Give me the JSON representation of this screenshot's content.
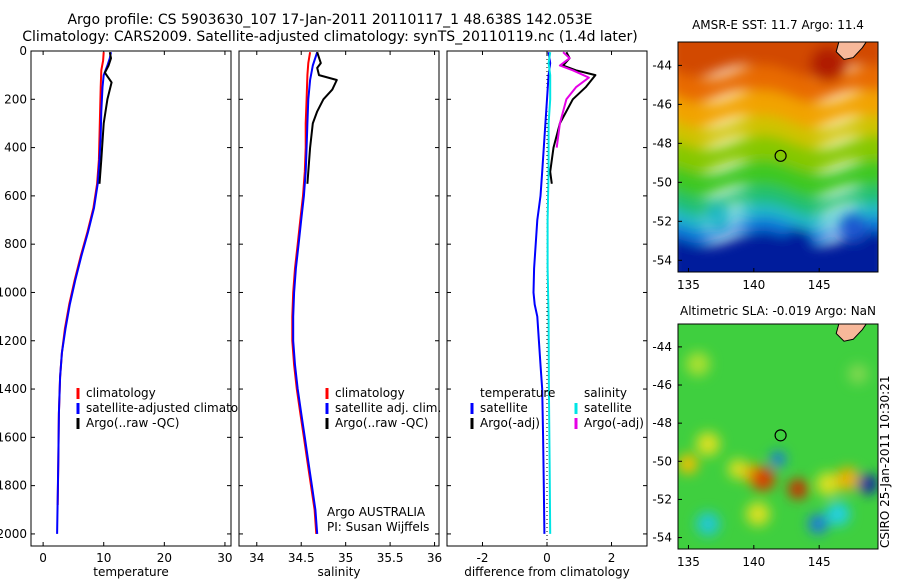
{
  "header": {
    "line1": "Argo profile: CS 5903630_107 17-Jan-2011 20110117_1 48.638S 142.053E",
    "line2": "Climatology: CARS2009. Satellite-adjusted climatology: synTS_20110119.nc (1.4d later)"
  },
  "colors": {
    "climatology": "#ff0000",
    "satellite": "#0000ff",
    "argo": "#000000",
    "satellite_diff": "#00e5e5",
    "argo_adj_diff": "#e600e6",
    "coast_land": "#f7b89a"
  },
  "chart_data": [
    {
      "type": "line",
      "name": "temperature-profile",
      "xlabel": "temperature",
      "ylabel": "",
      "xlim": [
        -2,
        31
      ],
      "ylim": [
        2050,
        0
      ],
      "xticks": [
        0,
        10,
        20,
        30
      ],
      "yticks": [
        0,
        200,
        400,
        600,
        800,
        1000,
        1200,
        1400,
        1600,
        1800,
        2000
      ],
      "legend": [
        "climatology",
        "satellite-adjusted climatolog",
        "Argo(..raw -QC)"
      ],
      "series": [
        {
          "name": "climatology",
          "color": "#ff0000",
          "points": [
            [
              10.0,
              5
            ],
            [
              9.9,
              40
            ],
            [
              9.6,
              80
            ],
            [
              9.5,
              150
            ],
            [
              9.4,
              250
            ],
            [
              9.3,
              350
            ],
            [
              9.2,
              450
            ],
            [
              8.9,
              550
            ],
            [
              8.3,
              650
            ],
            [
              7.3,
              750
            ],
            [
              6.2,
              850
            ],
            [
              5.2,
              950
            ],
            [
              4.3,
              1050
            ],
            [
              3.6,
              1150
            ],
            [
              3.1,
              1250
            ],
            [
              2.8,
              1350
            ],
            [
              2.6,
              1500
            ],
            [
              2.5,
              1700
            ],
            [
              2.4,
              1880
            ]
          ]
        },
        {
          "name": "satellite-adjusted climatology",
          "color": "#0000ff",
          "points": [
            [
              11.2,
              5
            ],
            [
              11.0,
              30
            ],
            [
              10.6,
              60
            ],
            [
              10.0,
              100
            ],
            [
              9.8,
              150
            ],
            [
              9.6,
              250
            ],
            [
              9.5,
              350
            ],
            [
              9.3,
              450
            ],
            [
              9.0,
              550
            ],
            [
              8.4,
              650
            ],
            [
              7.4,
              750
            ],
            [
              6.3,
              850
            ],
            [
              5.3,
              950
            ],
            [
              4.4,
              1050
            ],
            [
              3.7,
              1150
            ],
            [
              3.1,
              1250
            ],
            [
              2.8,
              1350
            ],
            [
              2.6,
              1500
            ],
            [
              2.5,
              1700
            ],
            [
              2.4,
              1850
            ],
            [
              2.3,
              2000
            ]
          ]
        },
        {
          "name": "Argo(..raw -QC)",
          "color": "#000000",
          "points": [
            [
              11.0,
              5
            ],
            [
              11.2,
              30
            ],
            [
              10.8,
              60
            ],
            [
              10.2,
              90
            ],
            [
              11.3,
              130
            ],
            [
              10.6,
              200
            ],
            [
              10.0,
              300
            ],
            [
              9.6,
              450
            ],
            [
              9.3,
              550
            ]
          ]
        }
      ]
    },
    {
      "type": "line",
      "name": "salinity-profile",
      "xlabel": "salinity",
      "ylabel": "",
      "xlim": [
        33.8,
        36.05
      ],
      "ylim": [
        2050,
        0
      ],
      "xticks": [
        34,
        34.5,
        35,
        35.5,
        36
      ],
      "legend": [
        "climatology",
        "satellite adj. clim.",
        "Argo(..raw -QC)"
      ],
      "annotation": [
        "Argo AUSTRALIA",
        "PI: Susan Wijffels"
      ],
      "series": [
        {
          "name": "climatology",
          "color": "#ff0000",
          "points": [
            [
              34.6,
              5
            ],
            [
              34.58,
              50
            ],
            [
              34.57,
              100
            ],
            [
              34.56,
              200
            ],
            [
              34.55,
              300
            ],
            [
              34.55,
              400
            ],
            [
              34.54,
              500
            ],
            [
              34.52,
              600
            ],
            [
              34.49,
              700
            ],
            [
              34.46,
              800
            ],
            [
              34.43,
              900
            ],
            [
              34.41,
              1000
            ],
            [
              34.4,
              1100
            ],
            [
              34.4,
              1200
            ],
            [
              34.42,
              1300
            ],
            [
              34.45,
              1400
            ],
            [
              34.49,
              1500
            ],
            [
              34.53,
              1600
            ],
            [
              34.57,
              1700
            ],
            [
              34.61,
              1800
            ],
            [
              34.65,
              1900
            ],
            [
              34.67,
              2000
            ]
          ]
        },
        {
          "name": "satellite adj. clim.",
          "color": "#0000ff",
          "points": [
            [
              34.68,
              5
            ],
            [
              34.63,
              60
            ],
            [
              34.6,
              120
            ],
            [
              34.58,
              200
            ],
            [
              34.57,
              300
            ],
            [
              34.56,
              400
            ],
            [
              34.55,
              500
            ],
            [
              34.53,
              600
            ],
            [
              34.5,
              700
            ],
            [
              34.47,
              800
            ],
            [
              34.44,
              900
            ],
            [
              34.42,
              1000
            ],
            [
              34.41,
              1100
            ],
            [
              34.41,
              1200
            ],
            [
              34.43,
              1300
            ],
            [
              34.46,
              1400
            ],
            [
              34.5,
              1500
            ],
            [
              34.54,
              1600
            ],
            [
              34.58,
              1700
            ],
            [
              34.62,
              1800
            ],
            [
              34.66,
              1900
            ],
            [
              34.68,
              2000
            ]
          ]
        },
        {
          "name": "Argo(..raw -QC)",
          "color": "#000000",
          "points": [
            [
              34.68,
              5
            ],
            [
              34.72,
              50
            ],
            [
              34.68,
              70
            ],
            [
              34.7,
              100
            ],
            [
              34.9,
              120
            ],
            [
              34.85,
              160
            ],
            [
              34.75,
              200
            ],
            [
              34.68,
              250
            ],
            [
              34.63,
              300
            ],
            [
              34.6,
              400
            ],
            [
              34.58,
              500
            ],
            [
              34.57,
              550
            ]
          ]
        }
      ]
    },
    {
      "type": "line",
      "name": "difference-profile",
      "xlabel": "difference from climatology",
      "ylabel": "",
      "xlim": [
        -3.1,
        3.1
      ],
      "ylim": [
        2050,
        0
      ],
      "xticks": [
        -2,
        0,
        2
      ],
      "legend": [
        "temperature",
        "satellite",
        "Argo(-adj)",
        "salinity",
        "satellite",
        "Argo(-adj)"
      ],
      "series": [
        {
          "name": "temperature satellite",
          "color": "#0000ff",
          "points": [
            [
              0.05,
              5
            ],
            [
              0.1,
              50
            ],
            [
              0.05,
              100
            ],
            [
              0.0,
              200
            ],
            [
              -0.05,
              300
            ],
            [
              -0.1,
              400
            ],
            [
              -0.15,
              500
            ],
            [
              -0.2,
              600
            ],
            [
              -0.25,
              650
            ],
            [
              -0.3,
              700
            ],
            [
              -0.35,
              800
            ],
            [
              -0.4,
              900
            ],
            [
              -0.42,
              1000
            ],
            [
              -0.38,
              1050
            ],
            [
              -0.3,
              1100
            ],
            [
              -0.25,
              1200
            ],
            [
              -0.2,
              1300
            ],
            [
              -0.15,
              1400
            ],
            [
              -0.12,
              1600
            ],
            [
              -0.1,
              1800
            ],
            [
              -0.08,
              2000
            ]
          ]
        },
        {
          "name": "temperature Argo(-adj)",
          "color": "#000000",
          "points": [
            [
              0.6,
              5
            ],
            [
              0.7,
              30
            ],
            [
              0.5,
              60
            ],
            [
              0.9,
              80
            ],
            [
              1.5,
              100
            ],
            [
              1.2,
              150
            ],
            [
              0.8,
              200
            ],
            [
              0.4,
              300
            ],
            [
              0.2,
              400
            ],
            [
              0.1,
              500
            ],
            [
              0.15,
              550
            ]
          ]
        },
        {
          "name": "salinity satellite",
          "color": "#00e5e5",
          "points": [
            [
              0.1,
              5
            ],
            [
              0.05,
              50
            ],
            [
              0.1,
              100
            ],
            [
              0.1,
              200
            ],
            [
              0.05,
              300
            ],
            [
              0.05,
              500
            ],
            [
              0.02,
              700
            ],
            [
              0.02,
              900
            ],
            [
              0.05,
              1100
            ],
            [
              0.06,
              1400
            ],
            [
              0.08,
              1700
            ],
            [
              0.1,
              2000
            ]
          ]
        },
        {
          "name": "salinity Argo(-adj)",
          "color": "#e600e6",
          "points": [
            [
              0.5,
              5
            ],
            [
              0.7,
              30
            ],
            [
              0.4,
              60
            ],
            [
              0.8,
              80
            ],
            [
              1.3,
              110
            ],
            [
              0.9,
              150
            ],
            [
              0.6,
              200
            ],
            [
              0.4,
              300
            ],
            [
              0.3,
              400
            ]
          ]
        }
      ]
    },
    {
      "type": "heatmap",
      "name": "sst-map",
      "title": "AMSR-E SST: 11.7 Argo: 11.4",
      "xlim": [
        134.2,
        149.5
      ],
      "ylim": [
        -54.6,
        -42.8
      ],
      "xticks": [
        135,
        140,
        145
      ],
      "yticks": [
        -44,
        -46,
        -48,
        -50,
        -52,
        -54
      ],
      "marker": [
        142.05,
        -48.64
      ]
    },
    {
      "type": "heatmap",
      "name": "sla-map",
      "title": "Altimetric SLA: -0.019 Argo: NaN",
      "xlim": [
        134.2,
        149.5
      ],
      "ylim": [
        -54.6,
        -42.8
      ],
      "xticks": [
        135,
        140,
        145
      ],
      "yticks": [
        -44,
        -46,
        -48,
        -50,
        -52,
        -54
      ],
      "marker": [
        142.05,
        -48.64
      ]
    }
  ],
  "footer": {
    "stamp": "CSIRO 25-Jan-2011 10:30:21"
  }
}
